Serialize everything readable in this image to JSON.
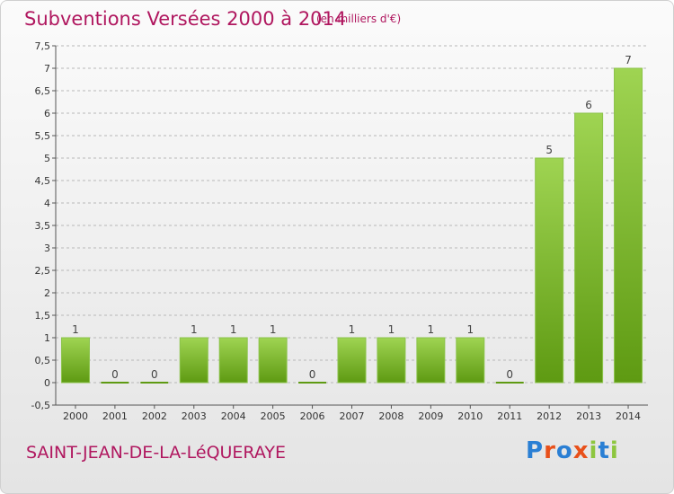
{
  "header": {
    "title": "Subventions Versées 2000 à 2014",
    "subtitle": "(en milliers d'€)"
  },
  "footer": {
    "commune": "SAINT-JEAN-DE-LA-LéQUERAYE",
    "logo": "Proxiti"
  },
  "colors": {
    "title": "#b0175f",
    "bar_top": "#9fd452",
    "bar_bottom": "#5e9a12",
    "grid": "#b8b8b8"
  },
  "chart_data": {
    "type": "bar",
    "categories": [
      "2000",
      "2001",
      "2002",
      "2003",
      "2004",
      "2005",
      "2006",
      "2007",
      "2008",
      "2009",
      "2010",
      "2011",
      "2012",
      "2013",
      "2014"
    ],
    "values": [
      1,
      0,
      0,
      1,
      1,
      1,
      0,
      1,
      1,
      1,
      1,
      0,
      5,
      6,
      7
    ],
    "data_labels": [
      "1",
      "0",
      "0",
      "1",
      "1",
      "1",
      "0",
      "1",
      "1",
      "1",
      "1",
      "0",
      "5",
      "6",
      "7"
    ],
    "ylim": [
      -0.5,
      7.5
    ],
    "yticks": [
      "-0,5",
      "0",
      "0,5",
      "1",
      "1,5",
      "2",
      "2,5",
      "3",
      "3,5",
      "4",
      "4,5",
      "5",
      "5,5",
      "6",
      "6,5",
      "7",
      "7,5"
    ],
    "grid": "horizontal dashed"
  }
}
